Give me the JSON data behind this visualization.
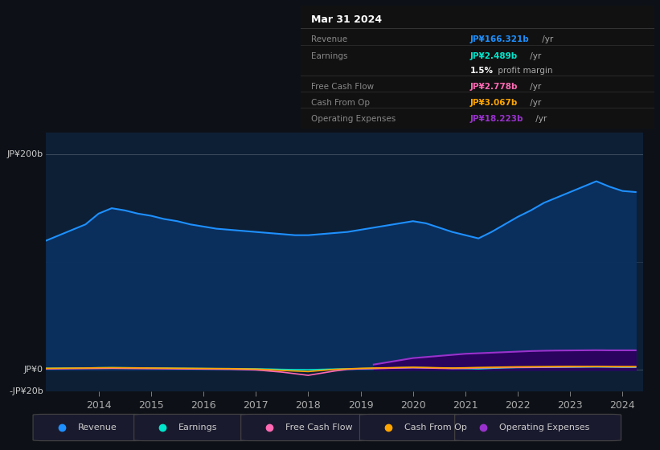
{
  "bg_color": "#0d1117",
  "plot_bg": "#0d1f35",
  "years": [
    2013,
    2013.25,
    2013.5,
    2013.75,
    2014,
    2014.25,
    2014.5,
    2014.75,
    2015,
    2015.25,
    2015.5,
    2015.75,
    2016,
    2016.25,
    2016.5,
    2016.75,
    2017,
    2017.25,
    2017.5,
    2017.75,
    2018,
    2018.25,
    2018.5,
    2018.75,
    2019,
    2019.25,
    2019.5,
    2019.75,
    2020,
    2020.25,
    2020.5,
    2020.75,
    2021,
    2021.25,
    2021.5,
    2021.75,
    2022,
    2022.25,
    2022.5,
    2022.75,
    2023,
    2023.25,
    2023.5,
    2023.75,
    2024,
    2024.25
  ],
  "revenue": [
    120,
    125,
    130,
    135,
    145,
    150,
    148,
    145,
    143,
    140,
    138,
    135,
    133,
    131,
    130,
    129,
    128,
    127,
    126,
    125,
    125,
    126,
    127,
    128,
    130,
    132,
    134,
    136,
    138,
    136,
    132,
    128,
    125,
    122,
    128,
    135,
    142,
    148,
    155,
    160,
    165,
    170,
    175,
    170,
    166,
    165
  ],
  "earnings": [
    1.5,
    1.6,
    1.7,
    1.8,
    2.0,
    2.1,
    2.0,
    1.9,
    1.8,
    1.7,
    1.5,
    1.4,
    1.3,
    1.2,
    1.2,
    1.1,
    1.0,
    0.8,
    0.5,
    0.3,
    0.2,
    0.5,
    0.8,
    1.0,
    1.2,
    1.5,
    1.8,
    2.0,
    2.2,
    2.0,
    1.8,
    1.5,
    1.3,
    1.0,
    1.5,
    2.0,
    2.2,
    2.3,
    2.4,
    2.5,
    2.6,
    2.7,
    2.8,
    2.7,
    2.5,
    2.5
  ],
  "free_cash_flow": [
    1.0,
    1.1,
    1.2,
    1.3,
    1.4,
    1.5,
    1.4,
    1.3,
    1.2,
    1.1,
    1.0,
    0.9,
    0.8,
    0.7,
    0.6,
    0.3,
    0.0,
    -1.0,
    -2.0,
    -3.5,
    -5.0,
    -3.0,
    -1.0,
    0.5,
    1.0,
    1.2,
    1.5,
    1.8,
    2.0,
    1.8,
    1.5,
    1.3,
    1.5,
    1.8,
    2.0,
    2.2,
    2.4,
    2.5,
    2.6,
    2.7,
    2.8,
    2.9,
    3.0,
    2.9,
    2.8,
    2.8
  ],
  "cash_from_op": [
    1.5,
    1.6,
    1.7,
    1.8,
    2.0,
    2.1,
    2.0,
    1.9,
    1.8,
    1.7,
    1.6,
    1.5,
    1.4,
    1.3,
    1.2,
    1.0,
    0.8,
    0.3,
    -0.5,
    -1.0,
    -1.5,
    -0.5,
    0.5,
    1.0,
    1.5,
    1.8,
    2.0,
    2.3,
    2.5,
    2.3,
    2.0,
    1.8,
    2.0,
    2.3,
    2.5,
    2.7,
    2.9,
    3.0,
    3.1,
    3.2,
    3.3,
    3.2,
    3.2,
    3.1,
    3.1,
    3.1
  ],
  "operating_expenses": [
    null,
    null,
    null,
    null,
    null,
    null,
    null,
    null,
    null,
    null,
    null,
    null,
    null,
    null,
    null,
    null,
    null,
    null,
    null,
    null,
    null,
    null,
    null,
    null,
    null,
    5.0,
    7.0,
    9.0,
    11.0,
    12.0,
    13.0,
    14.0,
    15.0,
    15.5,
    16.0,
    16.5,
    17.0,
    17.5,
    17.8,
    18.0,
    18.1,
    18.2,
    18.3,
    18.2,
    18.2,
    18.2
  ],
  "ylim": [
    -20,
    220
  ],
  "xlim": [
    2013.0,
    2024.4
  ],
  "xticks": [
    2014,
    2015,
    2016,
    2017,
    2018,
    2019,
    2020,
    2021,
    2022,
    2023,
    2024
  ],
  "revenue_color": "#1e90ff",
  "earnings_color": "#00e5cc",
  "free_cash_flow_color": "#ff69b4",
  "cash_from_op_color": "#ffa500",
  "operating_expenses_color": "#9932cc",
  "info_title": "Mar 31 2024",
  "info_rows": [
    {
      "label": "Revenue",
      "value": "JP¥166.321b",
      "suffix": " /yr",
      "value_color": "#1e90ff"
    },
    {
      "label": "Earnings",
      "value": "JP¥2.489b",
      "suffix": " /yr",
      "value_color": "#00e5cc"
    },
    {
      "label": "",
      "value": "1.5%",
      "suffix": " profit margin",
      "value_color": "#ffffff"
    },
    {
      "label": "Free Cash Flow",
      "value": "JP¥2.778b",
      "suffix": " /yr",
      "value_color": "#ff69b4"
    },
    {
      "label": "Cash From Op",
      "value": "JP¥3.067b",
      "suffix": " /yr",
      "value_color": "#ffa500"
    },
    {
      "label": "Operating Expenses",
      "value": "JP¥18.223b",
      "suffix": " /yr",
      "value_color": "#9932cc"
    }
  ],
  "legend_items": [
    {
      "label": "Revenue",
      "color": "#1e90ff"
    },
    {
      "label": "Earnings",
      "color": "#00e5cc"
    },
    {
      "label": "Free Cash Flow",
      "color": "#ff69b4"
    },
    {
      "label": "Cash From Op",
      "color": "#ffa500"
    },
    {
      "label": "Operating Expenses",
      "color": "#9932cc"
    }
  ]
}
